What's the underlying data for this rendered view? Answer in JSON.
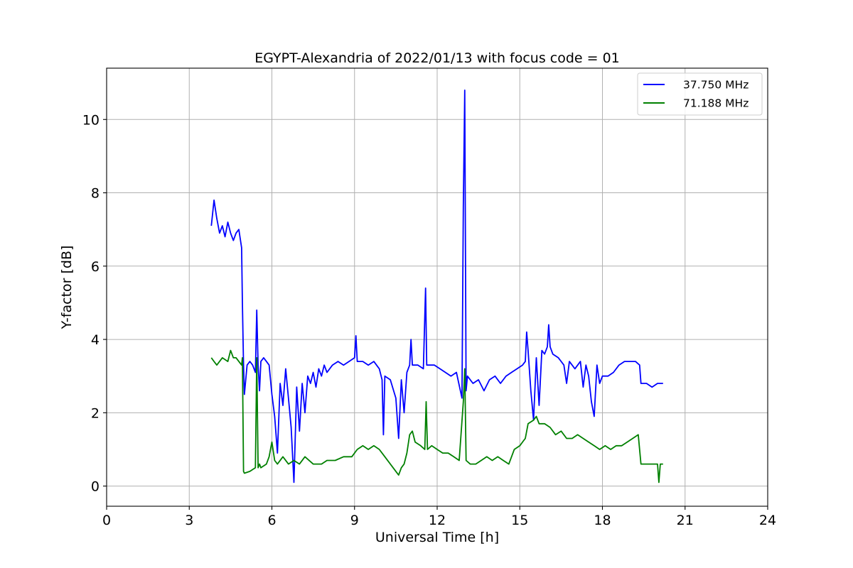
{
  "chart_data": {
    "type": "line",
    "title": "EGYPT-Alexandria of 2022/01/13 with focus code = 01",
    "xlabel": "Universal Time [h]",
    "ylabel": "Y-factor [dB]",
    "xlim": [
      0,
      24
    ],
    "ylim": [
      -0.55,
      11.4
    ],
    "xticks": [
      0,
      3,
      6,
      9,
      12,
      15,
      18,
      21,
      24
    ],
    "xtick_labels": [
      "0",
      "3",
      "6",
      "9",
      "12",
      "15",
      "18",
      "21",
      "24"
    ],
    "yticks": [
      0,
      2,
      4,
      6,
      8,
      10
    ],
    "ytick_labels": [
      "0",
      "2",
      "4",
      "6",
      "8",
      "10"
    ],
    "grid": true,
    "legend_position": "top-right",
    "series": [
      {
        "name": "37.750 MHz",
        "color": "#0000ff",
        "x": [
          3.8,
          3.9,
          4.0,
          4.1,
          4.2,
          4.3,
          4.4,
          4.5,
          4.6,
          4.7,
          4.8,
          4.9,
          4.93,
          4.97,
          5.0,
          5.1,
          5.2,
          5.3,
          5.4,
          5.45,
          5.5,
          5.55,
          5.6,
          5.7,
          5.8,
          5.9,
          6.0,
          6.1,
          6.2,
          6.3,
          6.4,
          6.5,
          6.6,
          6.7,
          6.8,
          6.9,
          7.0,
          7.1,
          7.2,
          7.3,
          7.4,
          7.5,
          7.6,
          7.7,
          7.8,
          7.9,
          8.0,
          8.2,
          8.4,
          8.6,
          8.8,
          9.0,
          9.05,
          9.1,
          9.3,
          9.5,
          9.7,
          9.9,
          10.0,
          10.05,
          10.1,
          10.3,
          10.5,
          10.6,
          10.7,
          10.8,
          10.9,
          11.0,
          11.05,
          11.1,
          11.3,
          11.5,
          11.58,
          11.62,
          11.7,
          11.9,
          12.1,
          12.3,
          12.5,
          12.7,
          12.9,
          12.95,
          13.0,
          13.05,
          13.1,
          13.3,
          13.5,
          13.7,
          13.9,
          14.1,
          14.3,
          14.5,
          14.7,
          14.9,
          15.1,
          15.2,
          15.25,
          15.3,
          15.4,
          15.5,
          15.6,
          15.7,
          15.8,
          15.9,
          16.0,
          16.05,
          16.1,
          16.2,
          16.4,
          16.6,
          16.7,
          16.8,
          17.0,
          17.2,
          17.3,
          17.4,
          17.5,
          17.6,
          17.7,
          17.8,
          17.9,
          18.0,
          18.2,
          18.4,
          18.6,
          18.8,
          19.0,
          19.2,
          19.35,
          19.4,
          19.6,
          19.8,
          20.0,
          20.2
        ],
        "y": [
          7.1,
          7.8,
          7.3,
          6.9,
          7.1,
          6.8,
          7.2,
          6.9,
          6.7,
          6.9,
          7.0,
          6.5,
          5.0,
          3.3,
          2.5,
          3.3,
          3.4,
          3.3,
          3.1,
          4.8,
          3.3,
          2.6,
          3.4,
          3.5,
          3.4,
          3.3,
          2.5,
          1.9,
          0.9,
          2.8,
          2.2,
          3.2,
          2.4,
          1.6,
          0.1,
          2.7,
          1.5,
          2.8,
          2.0,
          3.0,
          2.8,
          3.1,
          2.7,
          3.2,
          3.0,
          3.3,
          3.1,
          3.3,
          3.4,
          3.3,
          3.4,
          3.5,
          4.1,
          3.4,
          3.4,
          3.3,
          3.4,
          3.2,
          2.9,
          1.4,
          3.0,
          2.9,
          2.4,
          1.3,
          2.9,
          2.0,
          3.1,
          3.3,
          4.0,
          3.3,
          3.3,
          3.2,
          5.4,
          3.3,
          3.3,
          3.3,
          3.2,
          3.1,
          3.0,
          3.1,
          2.4,
          7.6,
          10.8,
          2.6,
          3.0,
          2.8,
          2.9,
          2.6,
          2.9,
          3.0,
          2.8,
          3.0,
          3.1,
          3.2,
          3.3,
          3.4,
          4.2,
          3.7,
          2.6,
          1.8,
          3.5,
          2.2,
          3.7,
          3.6,
          3.8,
          4.4,
          3.8,
          3.6,
          3.5,
          3.3,
          2.8,
          3.4,
          3.2,
          3.4,
          2.7,
          3.3,
          3.0,
          2.3,
          1.9,
          3.3,
          2.8,
          3.0,
          3.0,
          3.1,
          3.3,
          3.4,
          3.4,
          3.4,
          3.3,
          2.8,
          2.8,
          2.7,
          2.8,
          2.8
        ]
      },
      {
        "name": "71.188 MHz",
        "color": "#008000",
        "x": [
          3.8,
          3.9,
          4.0,
          4.2,
          4.4,
          4.5,
          4.6,
          4.7,
          4.8,
          4.9,
          4.93,
          4.97,
          5.0,
          5.2,
          5.4,
          5.45,
          5.5,
          5.55,
          5.6,
          5.8,
          5.9,
          6.0,
          6.1,
          6.2,
          6.4,
          6.6,
          6.8,
          7.0,
          7.2,
          7.5,
          7.8,
          8.0,
          8.3,
          8.6,
          8.9,
          9.1,
          9.3,
          9.5,
          9.7,
          9.9,
          10.1,
          10.3,
          10.5,
          10.6,
          10.7,
          10.8,
          10.9,
          11.0,
          11.1,
          11.2,
          11.4,
          11.55,
          11.6,
          11.65,
          11.8,
          12.0,
          12.2,
          12.4,
          12.6,
          12.8,
          12.95,
          13.0,
          13.05,
          13.2,
          13.4,
          13.6,
          13.8,
          14.0,
          14.2,
          14.4,
          14.6,
          14.8,
          15.0,
          15.1,
          15.2,
          15.3,
          15.5,
          15.6,
          15.7,
          15.9,
          16.1,
          16.3,
          16.5,
          16.7,
          16.9,
          17.1,
          17.3,
          17.5,
          17.7,
          17.9,
          18.1,
          18.3,
          18.5,
          18.7,
          18.9,
          19.1,
          19.3,
          19.35,
          19.4,
          19.6,
          19.8,
          20.0,
          20.05,
          20.1,
          20.2
        ],
        "y": [
          3.5,
          3.4,
          3.3,
          3.5,
          3.4,
          3.7,
          3.5,
          3.5,
          3.4,
          3.3,
          3.5,
          0.4,
          0.35,
          0.4,
          0.5,
          3.5,
          0.5,
          0.6,
          0.5,
          0.6,
          0.8,
          1.2,
          0.7,
          0.6,
          0.8,
          0.6,
          0.7,
          0.6,
          0.8,
          0.6,
          0.6,
          0.7,
          0.7,
          0.8,
          0.8,
          1.0,
          1.1,
          1.0,
          1.1,
          1.0,
          0.8,
          0.6,
          0.4,
          0.3,
          0.5,
          0.6,
          0.9,
          1.4,
          1.5,
          1.2,
          1.1,
          1.0,
          2.3,
          1.0,
          1.1,
          1.0,
          0.9,
          0.9,
          0.8,
          0.7,
          2.3,
          3.2,
          0.7,
          0.6,
          0.6,
          0.7,
          0.8,
          0.7,
          0.8,
          0.7,
          0.6,
          1.0,
          1.1,
          1.2,
          1.3,
          1.7,
          1.8,
          1.9,
          1.7,
          1.7,
          1.6,
          1.4,
          1.5,
          1.3,
          1.3,
          1.4,
          1.3,
          1.2,
          1.1,
          1.0,
          1.1,
          1.0,
          1.1,
          1.1,
          1.2,
          1.3,
          1.4,
          1.0,
          0.6,
          0.6,
          0.6,
          0.6,
          0.1,
          0.6,
          0.6
        ]
      }
    ]
  }
}
